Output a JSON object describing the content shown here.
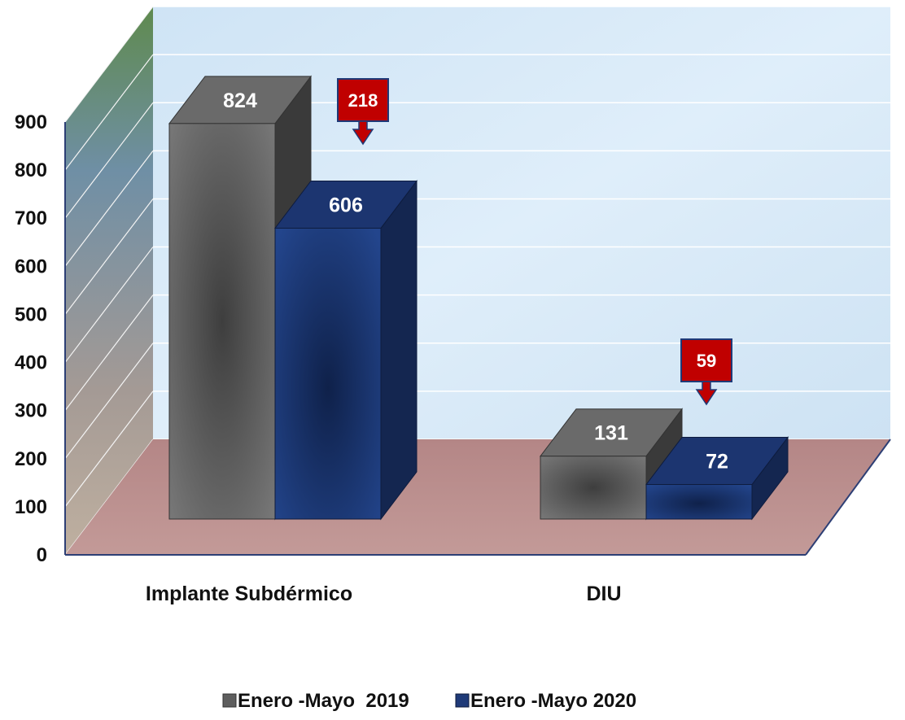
{
  "chart_data": {
    "type": "bar",
    "style": "3d-clustered-column",
    "categories": [
      "Implante Subdérmico",
      "DIU"
    ],
    "series": [
      {
        "name": "Enero -Mayo  2019",
        "values": [
          824,
          131
        ],
        "color": "#5e5e5e"
      },
      {
        "name": "Enero -Mayo 2020",
        "values": [
          606,
          72
        ],
        "color": "#1f3a78"
      }
    ],
    "yticks": [
      "0",
      "100",
      "200",
      "300",
      "400",
      "500",
      "600",
      "700",
      "800",
      "900"
    ],
    "ylim": [
      0,
      900
    ],
    "grid": true,
    "legend_position": "bottom",
    "annotations": [
      {
        "category": "Implante Subdérmico",
        "text": "218",
        "color": "#c00000"
      },
      {
        "category": "DIU",
        "text": "59",
        "color": "#c00000"
      }
    ],
    "title": "",
    "xlabel": "",
    "ylabel": ""
  },
  "colors": {
    "back_wall": "#d5e8f7",
    "floor": "#b88a8a",
    "side_wall_top": "#6e8e5e",
    "side_wall_bottom": "#b9a89a",
    "callout": "#c00000"
  }
}
